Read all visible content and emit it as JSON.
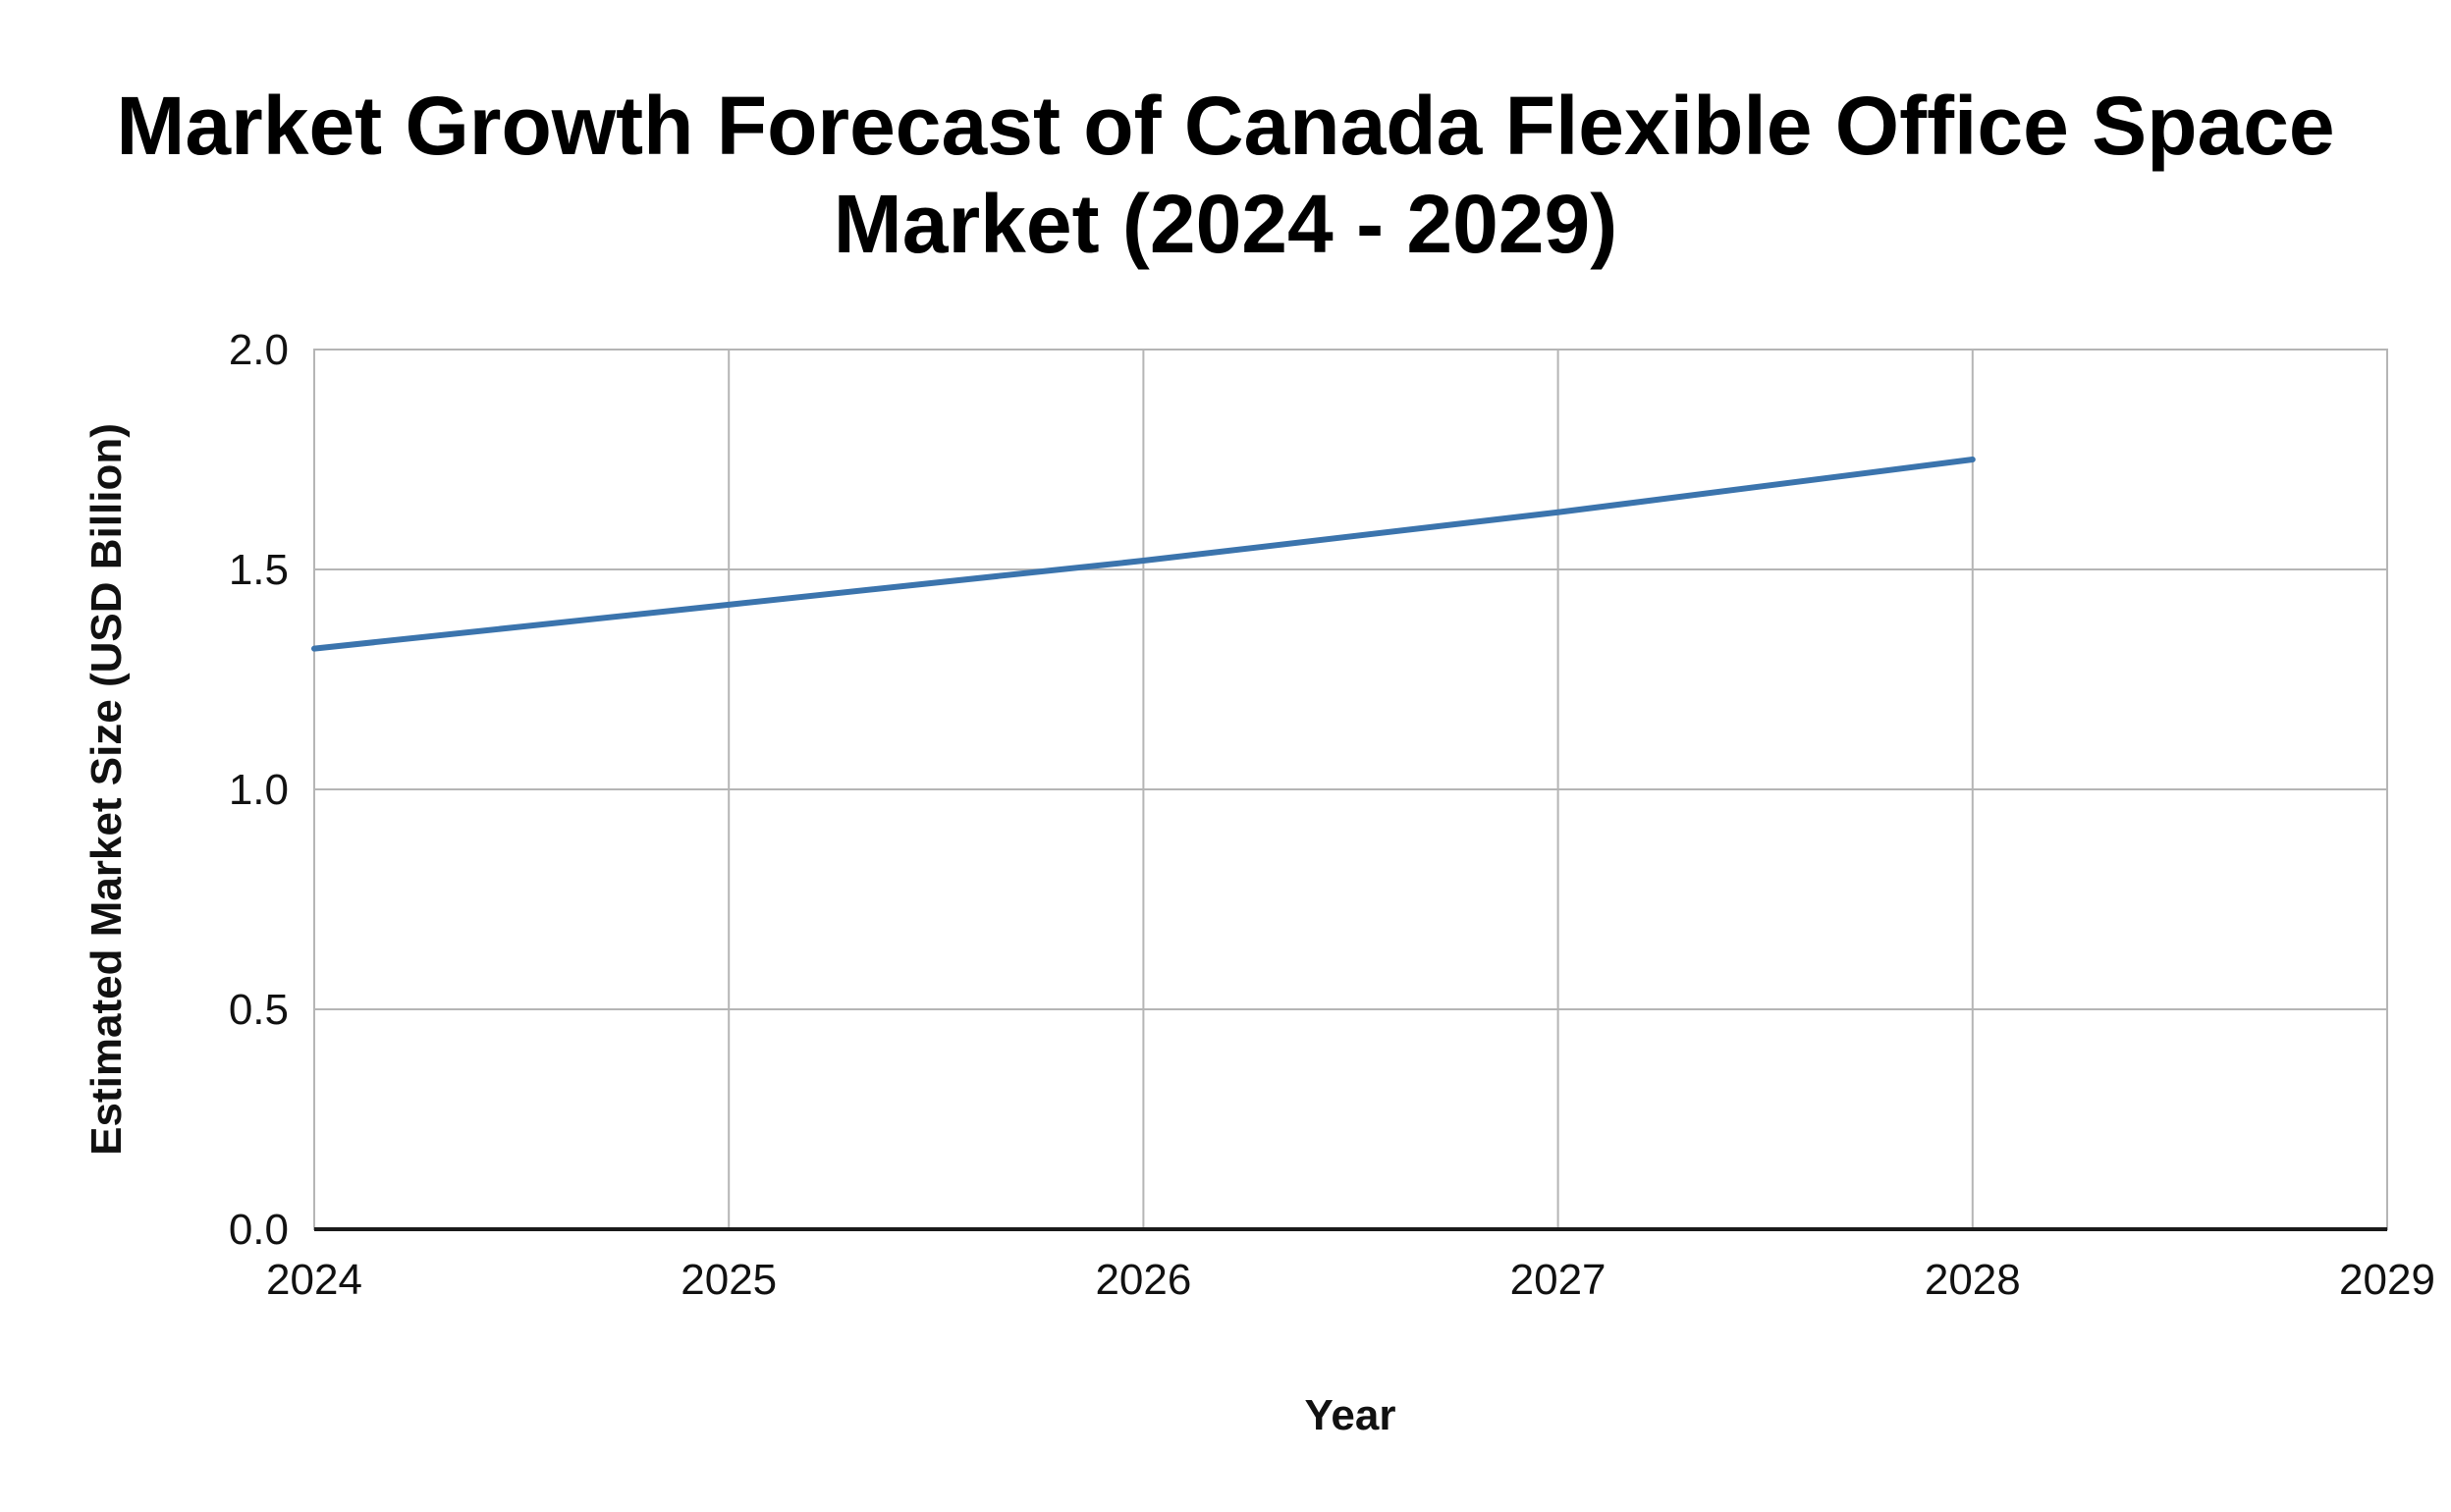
{
  "chart_data": {
    "type": "line",
    "title_lines": [
      "Market Growth Forecast of Canada Flexible Office Space",
      "Market (2024 - 2029)"
    ],
    "xlabel": "Year",
    "ylabel": "Estimated Market Size (USD Billion)",
    "x_ticks": [
      "2024",
      "2025",
      "2026",
      "2027",
      "2028",
      "2029"
    ],
    "y_ticks": [
      "0.0",
      "0.5",
      "1.0",
      "1.5",
      "2.0"
    ],
    "xlim": [
      2024,
      2029
    ],
    "ylim": [
      0,
      2.0
    ],
    "grid": true,
    "legend": "none",
    "series": [
      {
        "color": "#3b74ad",
        "x": [
          2024,
          2025,
          2026,
          2027,
          2028
        ],
        "y": [
          1.32,
          1.42,
          1.52,
          1.63,
          1.75
        ]
      }
    ]
  },
  "colors": {
    "grid": "#b5b5b5",
    "axis": "#1a1a1a",
    "line": "#3b74ad"
  }
}
